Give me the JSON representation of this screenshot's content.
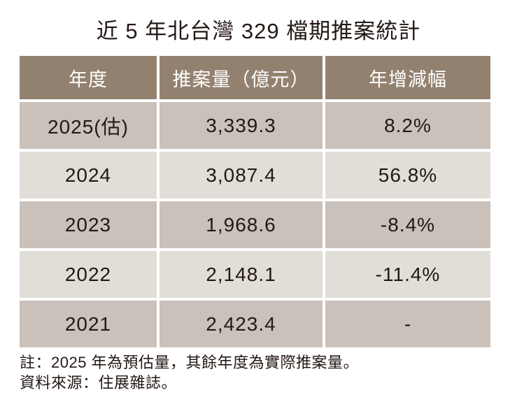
{
  "title": "近 5 年北台灣 329 檔期推案統計",
  "table": {
    "headers": [
      "年度",
      "推案量（億元）",
      "年增減幅"
    ],
    "rows": [
      {
        "year": "2025(估)",
        "amount": "3,339.3",
        "change": "8.2%"
      },
      {
        "year": "2024",
        "amount": "3,087.4",
        "change": "56.8%"
      },
      {
        "year": "2023",
        "amount": "1,968.6",
        "change": "-8.4%"
      },
      {
        "year": "2022",
        "amount": "2,148.1",
        "change": "-11.4%"
      },
      {
        "year": "2021",
        "amount": "2,423.4",
        "change": "-"
      }
    ]
  },
  "notes": [
    "註：2025 年為預估量，其餘年度為實際推案量。",
    "資料來源：住展雜誌。"
  ],
  "colors": {
    "header_bg": "#93816F",
    "header_text": "#FFFFFF",
    "row_dark": "#C9C1BA",
    "row_light": "#E1DED8",
    "text": "#231815",
    "page_bg": "#FFFFFF"
  },
  "chart_data": {
    "type": "table",
    "title": "近 5 年北台灣 329 檔期推案統計",
    "columns": [
      "年度",
      "推案量（億元）",
      "年增減幅"
    ],
    "rows": [
      [
        "2025(估)",
        3339.3,
        "8.2%"
      ],
      [
        "2024",
        3087.4,
        "56.8%"
      ],
      [
        "2023",
        1968.6,
        "-8.4%"
      ],
      [
        "2022",
        2148.1,
        "-11.4%"
      ],
      [
        "2021",
        2423.4,
        "-"
      ]
    ],
    "notes": [
      "註：2025 年為預估量，其餘年度為實際推案量。",
      "資料來源：住展雜誌。"
    ]
  }
}
